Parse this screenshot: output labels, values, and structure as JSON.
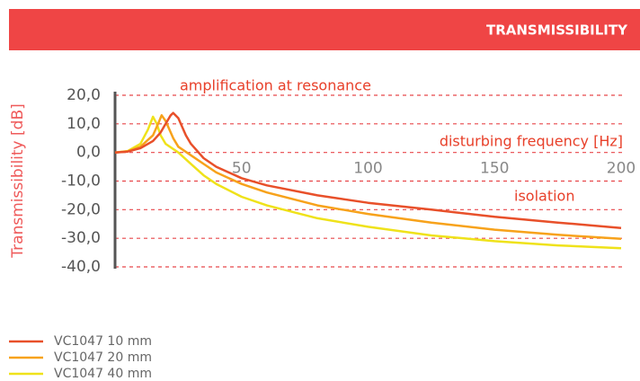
{
  "chart_data": {
    "type": "line",
    "title": "TRANSMISSIBILITY",
    "y_label": "Transmissibility [dB]",
    "annotations": [
      "amplification at resonance",
      "disturbing frequency [Hz]",
      "isolation"
    ],
    "xlim": [
      0,
      200
    ],
    "xticks": [
      50,
      100,
      150,
      200
    ],
    "ylim": [
      -40,
      20
    ],
    "yticks": [
      {
        "value": 20,
        "label": "20,0"
      },
      {
        "value": 10,
        "label": "10,0"
      },
      {
        "value": 0,
        "label": "0,0"
      },
      {
        "value": -10,
        "label": "-10,0"
      },
      {
        "value": -20,
        "label": "-20,0"
      },
      {
        "value": -30,
        "label": "-30,0"
      },
      {
        "value": -40,
        "label": "-40,0"
      }
    ],
    "grid": true,
    "series": [
      {
        "name": "VC1047 10 mm",
        "color": "#e8502a",
        "x": [
          0,
          5,
          10,
          15,
          18,
          20,
          22,
          23,
          25,
          28,
          30,
          35,
          40,
          50,
          60,
          80,
          100,
          125,
          150,
          175,
          200
        ],
        "values": [
          0,
          0.3,
          1.5,
          4,
          7,
          10,
          13,
          13.8,
          12,
          6,
          3,
          -2,
          -5,
          -9,
          -11.5,
          -15,
          -17.6,
          -20,
          -22.5,
          -24.5,
          -26.4
        ]
      },
      {
        "name": "VC1047 20 mm",
        "color": "#f7a21b",
        "x": [
          0,
          5,
          10,
          15,
          17,
          18.4,
          20,
          23,
          25,
          30,
          35,
          40,
          50,
          60,
          80,
          100,
          125,
          150,
          175,
          200
        ],
        "values": [
          0,
          0.4,
          2,
          6,
          10,
          13,
          11,
          5,
          2,
          -1,
          -4,
          -7,
          -11,
          -14,
          -18.5,
          -21.5,
          -24.5,
          -27,
          -28.8,
          -30.2
        ]
      },
      {
        "name": "VC1047 40 mm",
        "color": "#efe21a",
        "x": [
          0,
          5,
          10,
          13,
          15,
          16.5,
          18,
          20,
          25,
          30,
          35,
          40,
          50,
          60,
          80,
          100,
          125,
          150,
          175,
          200
        ],
        "values": [
          0,
          0.5,
          3,
          8,
          12.5,
          10,
          6,
          3,
          0,
          -4,
          -8,
          -11,
          -15.5,
          -18.5,
          -23,
          -26,
          -29,
          -31,
          -32.5,
          -33.5
        ]
      }
    ]
  }
}
